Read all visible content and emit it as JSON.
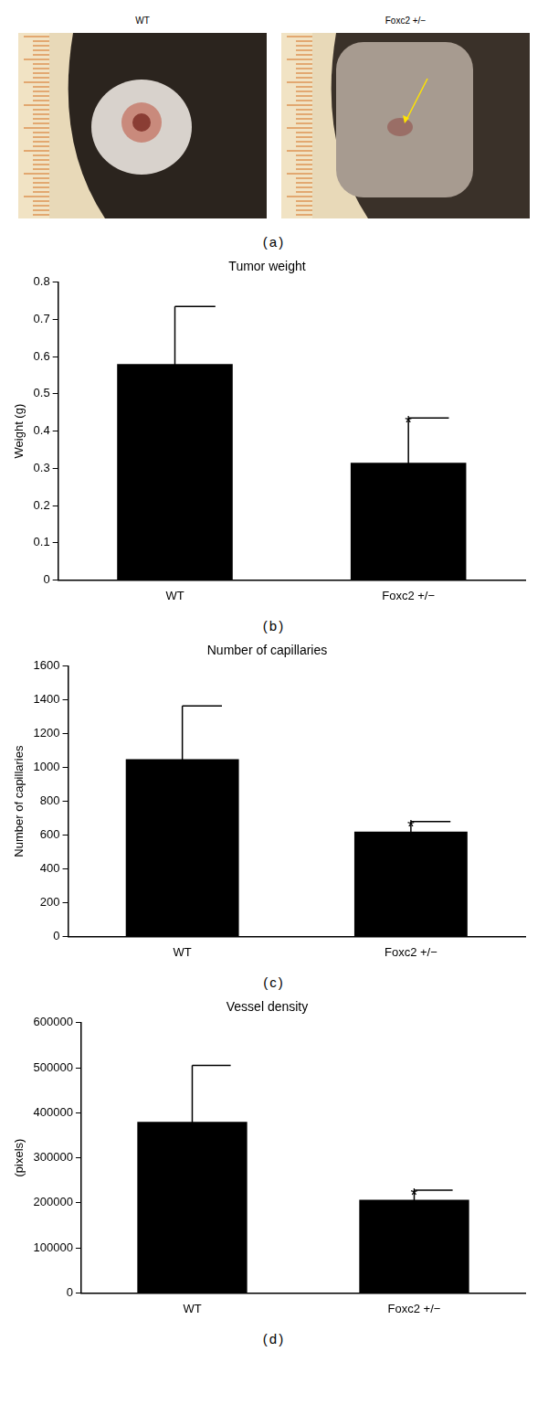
{
  "photos": {
    "labels": [
      "WT",
      "Foxc2 +/−"
    ],
    "annotations": [
      "(a)"
    ]
  },
  "chart_data": [
    {
      "type": "bar",
      "title": "Tumor weight",
      "y_label": "Weight (g)",
      "categories": [
        "WT",
        "Foxc2 +/−"
      ],
      "values": [
        0.58,
        0.315
      ],
      "errors": [
        0.155,
        0.12
      ],
      "color": "#000000",
      "ylim": [
        0,
        0.8
      ],
      "yticks": [
        0,
        0.1,
        0.2,
        0.3,
        0.4,
        0.5,
        0.6,
        0.7,
        0.8
      ],
      "grid": false,
      "annotations": [
        {
          "text": "(b)"
        },
        {
          "text": "*",
          "category": "Foxc2 +/−"
        }
      ]
    },
    {
      "type": "bar",
      "title": "Number of capillaries",
      "y_label": "Number of capillaries",
      "categories": [
        "WT",
        "Foxc2 +/−"
      ],
      "values": [
        1050,
        620
      ],
      "errors": [
        315,
        60
      ],
      "color": "#000000",
      "ylim": [
        0,
        1600
      ],
      "yticks": [
        0,
        200,
        400,
        600,
        800,
        1000,
        1200,
        1400,
        1600
      ],
      "grid": false,
      "annotations": [
        {
          "text": "(c)"
        },
        {
          "text": "*",
          "category": "Foxc2 +/−"
        }
      ]
    },
    {
      "type": "bar",
      "title": "Vessel density",
      "y_label": "(pixels)",
      "categories": [
        "WT",
        "Foxc2 +/−"
      ],
      "values": [
        380000,
        207000
      ],
      "errors": [
        125000,
        21000
      ],
      "color": "#000000",
      "ylim": [
        0,
        600000
      ],
      "yticks": [
        0,
        100000,
        200000,
        300000,
        400000,
        500000,
        600000
      ],
      "grid": false,
      "annotations": [
        {
          "text": "(d)"
        },
        {
          "text": "*",
          "category": "Foxc2 +/−"
        }
      ]
    }
  ]
}
